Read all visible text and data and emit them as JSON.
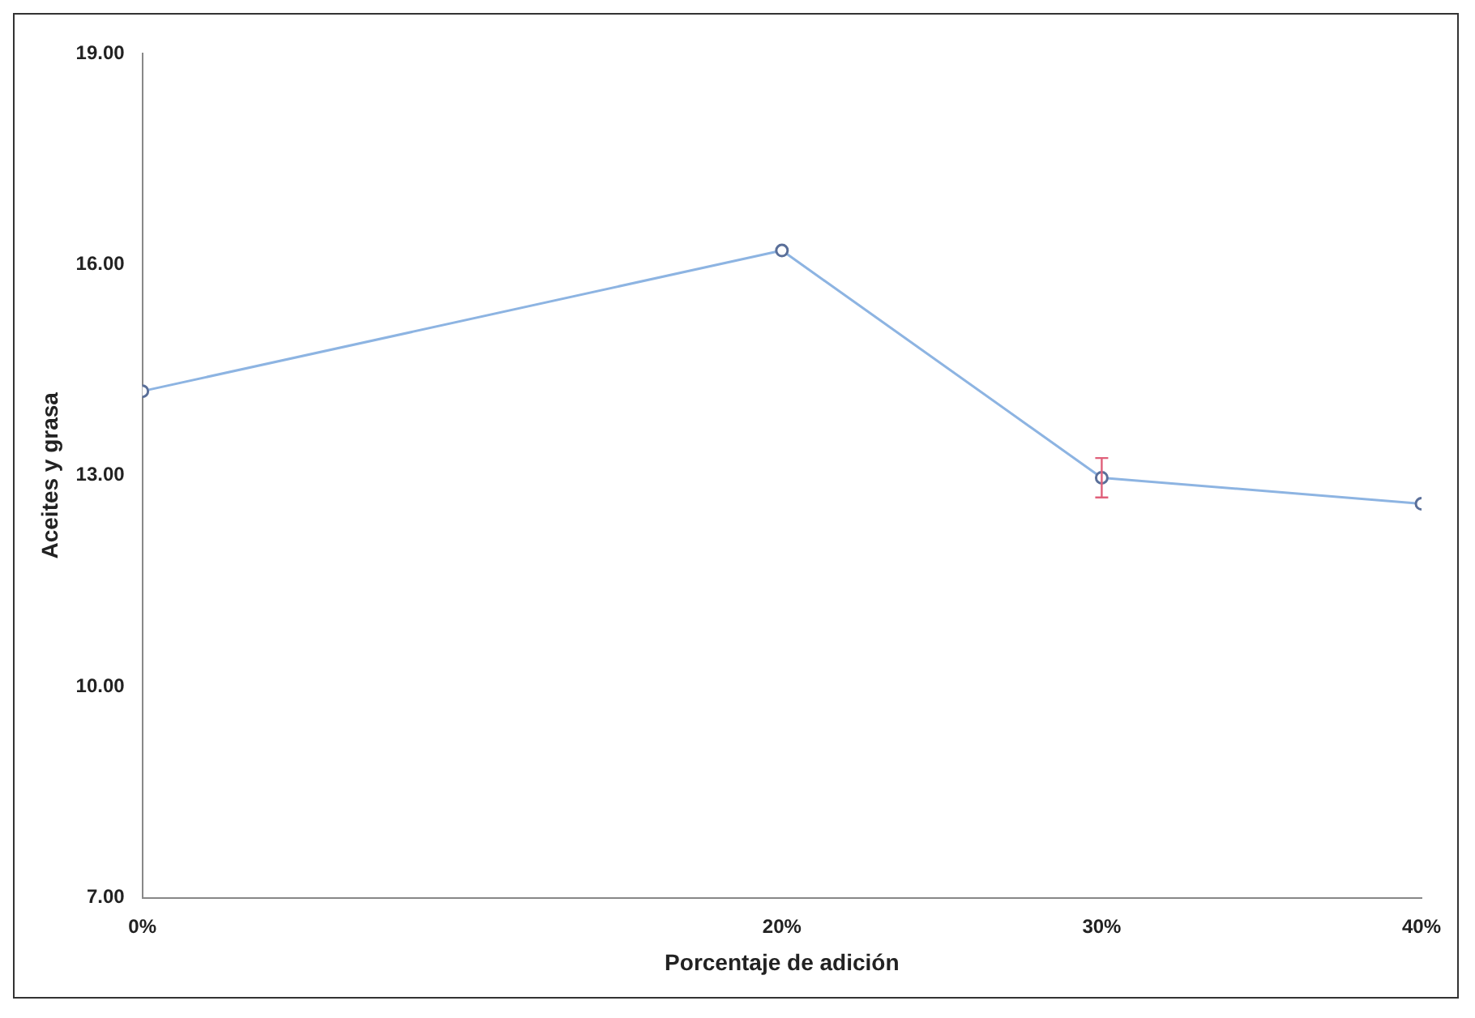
{
  "chart_data": {
    "type": "line",
    "xlabel": "Porcentaje de adición",
    "ylabel": "Aceites y grasa",
    "x": [
      0,
      20,
      30,
      40
    ],
    "series": [
      {
        "color": "#8db4e2",
        "values": [
          14.2,
          16.2,
          12.97,
          12.6
        ],
        "errors": [
          null,
          null,
          0.28,
          null
        ]
      }
    ],
    "xlim": [
      0,
      40
    ],
    "xticks": [
      {
        "value": 0,
        "label": "0%"
      },
      {
        "value": 20,
        "label": "20%"
      },
      {
        "value": 30,
        "label": "30%"
      },
      {
        "value": 40,
        "label": "40%"
      }
    ],
    "ylim": [
      7,
      19
    ],
    "yticks": [
      {
        "value": 7,
        "label": "7.00"
      },
      {
        "value": 10,
        "label": "10.00"
      },
      {
        "value": 13,
        "label": "13.00"
      },
      {
        "value": 16,
        "label": "16.00"
      },
      {
        "value": 19,
        "label": "19.00"
      }
    ],
    "grid": false,
    "legend": false,
    "marker": "circle",
    "line_style": "solid"
  }
}
